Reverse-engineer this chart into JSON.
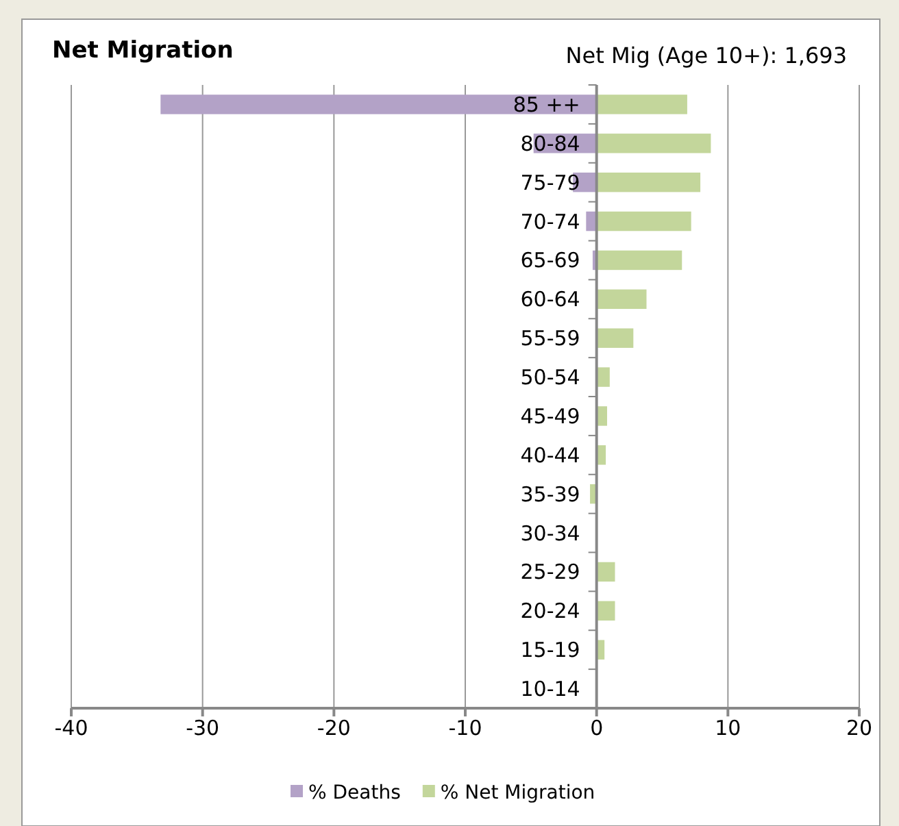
{
  "chart_data": {
    "type": "bar",
    "orientation": "horizontal",
    "title": "Net Migration",
    "subtitle": "Net Mig (Age 10+): 1,693",
    "categories": [
      "85 ++",
      "80-84",
      "75-79",
      "70-74",
      "65-69",
      "60-64",
      "55-59",
      "50-54",
      "45-49",
      "40-44",
      "35-39",
      "30-34",
      "25-29",
      "20-24",
      "15-19",
      "10-14"
    ],
    "series": [
      {
        "name": "% Deaths",
        "color": "#b3a2c7",
        "values": [
          -33.2,
          -4.8,
          -1.8,
          -0.8,
          -0.3,
          null,
          0,
          0,
          0,
          0,
          0,
          0,
          0,
          0,
          0,
          0
        ]
      },
      {
        "name": "% Net Migration",
        "color": "#c3d69b",
        "values": [
          6.9,
          8.7,
          7.9,
          7.2,
          6.5,
          3.8,
          2.8,
          1.0,
          0.8,
          0.7,
          -0.5,
          null,
          1.4,
          1.4,
          0.6,
          null
        ]
      }
    ],
    "xlim": [
      -40,
      20
    ],
    "xticks": [
      -40,
      -30,
      -20,
      -10,
      0,
      10,
      20
    ],
    "grid": "x",
    "legend": "bottom"
  }
}
